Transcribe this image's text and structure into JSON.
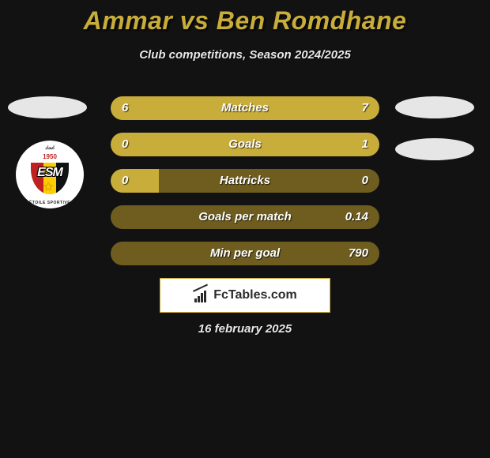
{
  "title": "Ammar vs Ben Romdhane",
  "subtitle": "Club competitions, Season 2024/2025",
  "date": "16 february 2025",
  "brand": "FcTables.com",
  "colors": {
    "accent": "#c9ad3a",
    "bar_empty": "#6e5d1f",
    "background": "#121212",
    "text": "#ffffff",
    "badge": "#e6e6e6"
  },
  "crest": {
    "year": "1950",
    "initials": "ESM",
    "top_text": "اتحاد",
    "bottom_text": "ÉTOILE SPORTIVE"
  },
  "bars": [
    {
      "label": "Matches",
      "left_val": "6",
      "right_val": "7",
      "left_pct": 46,
      "right_pct": 54
    },
    {
      "label": "Goals",
      "left_val": "0",
      "right_val": "1",
      "left_pct": 18,
      "right_pct": 82
    },
    {
      "label": "Hattricks",
      "left_val": "0",
      "right_val": "0",
      "left_pct": 18,
      "right_pct": 0
    },
    {
      "label": "Goals per match",
      "left_val": "",
      "right_val": "0.14",
      "left_pct": 0,
      "right_pct": 0
    },
    {
      "label": "Min per goal",
      "left_val": "",
      "right_val": "790",
      "left_pct": 0,
      "right_pct": 0
    }
  ]
}
